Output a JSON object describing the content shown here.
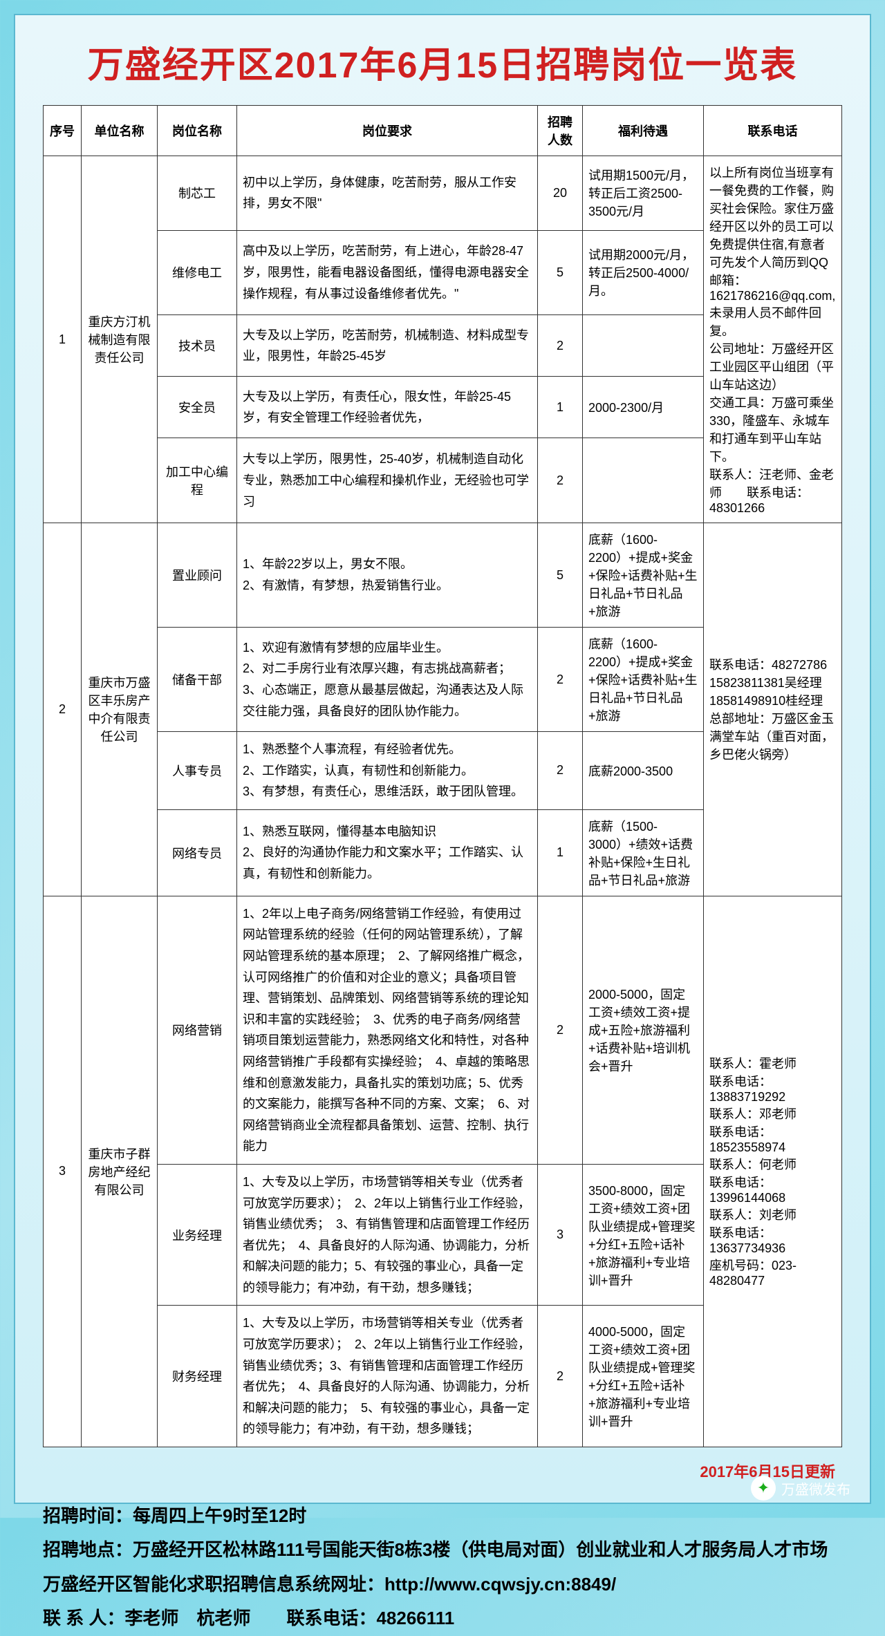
{
  "title": "万盛经开区2017年6月15日招聘岗位一览表",
  "headers": [
    "序号",
    "单位名称",
    "岗位名称",
    "岗位要求",
    "招聘人数",
    "福利待遇",
    "联系电话"
  ],
  "colwidths": [
    "55px",
    "110px",
    "115px",
    "auto",
    "65px",
    "175px",
    "200px"
  ],
  "groups": [
    {
      "idx": "1",
      "company": "重庆方汀机械制造有限责任公司",
      "contact": "以上所有岗位当班享有一餐免费的工作餐，购买社会保险。家住万盛经开区以外的员工可以免费提供住宿,有意者可先发个人简历到QQ邮箱：1621786216@qq.com,未录用人员不邮件回复。\n公司地址：万盛经开区工业园区平山组团（平山车站这边）\n交通工具：万盛可乘坐330，隆盛车、永城车和打通车到平山车站下。\n联系人：汪老师、金老师　　联系电话：48301266",
      "rows": [
        {
          "pos": "制芯工",
          "req": "初中以上学历，身体健康，吃苦耐劳，服从工作安排，男女不限\"",
          "num": "20",
          "benefit": "试用期1500元/月，转正后工资2500-3500元/月"
        },
        {
          "pos": "维修电工",
          "req": "高中及以上学历，吃苦耐劳，有上进心，年龄28-47岁，限男性，能看电器设备图纸，懂得电源电器安全操作规程，有从事过设备维修者优先。\"",
          "num": "5",
          "benefit": "试用期2000元/月，转正后2500-4000/月。"
        },
        {
          "pos": "技术员",
          "req": "大专及以上学历，吃苦耐劳，机械制造、材料成型专业，限男性，年龄25-45岁",
          "num": "2",
          "benefit": ""
        },
        {
          "pos": "安全员",
          "req": "大专及以上学历，有责任心，限女性，年龄25-45岁，有安全管理工作经验者优先，",
          "num": "1",
          "benefit": "2000-2300/月"
        },
        {
          "pos": "加工中心编程",
          "req": "大专以上学历，限男性，25-40岁，机械制造自动化专业，熟悉加工中心编程和操机作业，无经验也可学习",
          "num": "2",
          "benefit": ""
        }
      ]
    },
    {
      "idx": "2",
      "company": "重庆市万盛区丰乐房产中介有限责任公司",
      "contact": "联系电话：48272786\n15823811381吴经理\n18581498910桂经理\n总部地址：万盛区金玉满堂车站（重百对面，乡巴佬火锅旁）",
      "rows": [
        {
          "pos": "置业顾问",
          "req": "1、年龄22岁以上，男女不限。\n2、有激情，有梦想，热爱销售行业。",
          "num": "5",
          "benefit": "底薪（1600-2200）+提成+奖金+保险+话费补贴+生日礼品+节日礼品+旅游"
        },
        {
          "pos": "储备干部",
          "req": "1、欢迎有激情有梦想的应届毕业生。\n2、对二手房行业有浓厚兴趣，有志挑战高薪者；\n3、心态端正，愿意从最基层做起，沟通表达及人际交往能力强，具备良好的团队协作能力。",
          "num": "2",
          "benefit": "底薪（1600-2200）+提成+奖金+保险+话费补贴+生日礼品+节日礼品+旅游"
        },
        {
          "pos": "人事专员",
          "req": "1、熟悉整个人事流程，有经验者优先。\n2、工作踏实，认真，有韧性和创新能力。\n3、有梦想，有责任心，思维活跃，敢于团队管理。",
          "num": "2",
          "benefit": "底薪2000-3500"
        },
        {
          "pos": "网络专员",
          "req": "1、熟悉互联网，懂得基本电脑知识\n2、良好的沟通协作能力和文案水平；工作踏实、认真，有韧性和创新能力。",
          "num": "1",
          "benefit": "底薪（1500-3000）+绩效+话费补贴+保险+生日礼品+节日礼品+旅游"
        }
      ]
    },
    {
      "idx": "3",
      "company": "重庆市子群房地产经纪有限公司",
      "contact": "联系人：霍老师\n联系电话：13883719292\n联系人：邓老师\n联系电话：18523558974\n联系人：何老师\n联系电话：13996144068\n联系人：刘老师\n联系电话：13637734936\n座机号码：023-48280477",
      "rows": [
        {
          "pos": "网络营销",
          "req": "1、2年以上电子商务/网络营销工作经验，有使用过网站管理系统的经验（任何的网站管理系统），了解网站管理系统的基本原理；　2、了解网络推广概念，认可网络推广的价值和对企业的意义；具备项目管理、营销策划、品牌策划、网络营销等系统的理论知识和丰富的实践经验；　3、优秀的电子商务/网络营销项目策划运营能力，熟悉网络文化和特性，对各种网络营销推广手段都有实操经验；　4、卓越的策略思维和创意激发能力，具备扎实的策划功底；5、优秀的文案能力，能撰写各种不同的方案、文案；　6、对网络营销商业全流程都具备策划、运营、控制、执行能力",
          "num": "2",
          "benefit": "2000-5000，固定工资+绩效工资+提成+五险+旅游福利+话费补贴+培训机会+晋升"
        },
        {
          "pos": "业务经理",
          "req": "1、大专及以上学历，市场营销等相关专业（优秀者可放宽学历要求）；　2、2年以上销售行业工作经验，销售业绩优秀；　3、有销售管理和店面管理工作经历者优先；　4、具备良好的人际沟通、协调能力，分析和解决问题的能力；5、有较强的事业心，具备一定的领导能力；有冲劲，有干劲，想多赚钱；",
          "num": "3",
          "benefit": "3500-8000，固定工资+绩效工资+团队业绩提成+管理奖+分红+五险+话补+旅游福利+专业培训+晋升"
        },
        {
          "pos": "财务经理",
          "req": "1、大专及以上学历，市场营销等相关专业（优秀者可放宽学历要求）；　2、2年以上销售行业工作经验，销售业绩优秀；3、有销售管理和店面管理工作经历者优先；　4、具备良好的人际沟通、协调能力，分析和解决问题的能力；　5、有较强的事业心，具备一定的领导能力；有冲劲，有干劲，想多赚钱；",
          "num": "2",
          "benefit": "4000-5000，固定工资+绩效工资+团队业绩提成+管理奖+分红+五险+话补+旅游福利+专业培训+晋升"
        }
      ]
    }
  ],
  "update": "2017年6月15日更新",
  "footer": {
    "time": "招聘时间：每周四上午9时至12时",
    "place": "招聘地点：万盛经开区松林路111号国能天街8栋3楼（供电局对面）创业就业和人才服务局人才市场",
    "site": "万盛经开区智能化求职招聘信息系统网址：http://www.cqwsjy.cn:8849/",
    "contact": "联 系 人：李老师　杭老师　　联系电话：48266111"
  },
  "wechat": "万盛微发布"
}
